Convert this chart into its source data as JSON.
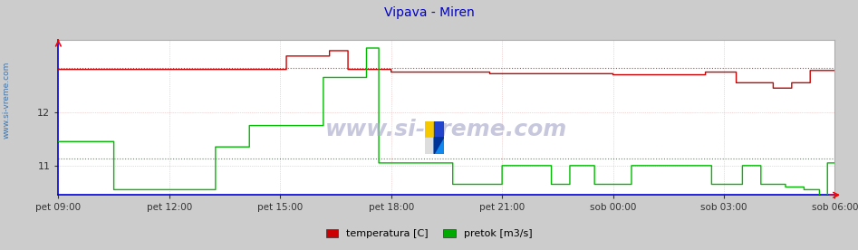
{
  "title": "Vipava - Miren",
  "title_color": "#0000cc",
  "title_fontsize": 10,
  "bg_color": "#cccccc",
  "plot_bg_color": "#ffffff",
  "axis_color": "#0000dd",
  "legend_items": [
    "temperatura [C]",
    "pretok [m3/s]"
  ],
  "legend_colors": [
    "#cc0000",
    "#00aa00"
  ],
  "x_tick_labels": [
    "pet 09:00",
    "pet 12:00",
    "pet 15:00",
    "pet 18:00",
    "pet 21:00",
    "sob 00:00",
    "sob 03:00",
    "sob 06:00"
  ],
  "x_tick_positions": [
    0,
    180,
    360,
    540,
    720,
    900,
    1080,
    1260
  ],
  "total_points": 1261,
  "ylim": [
    10.45,
    13.35
  ],
  "yticks": [
    11,
    12
  ],
  "temp_hline": 12.82,
  "flow_hline": 11.13,
  "temp_color": "#cc0000",
  "flow_color": "#00bb00",
  "temp_hline_color": "#dd3333",
  "flow_hline_color": "#33aa33",
  "sidebar_text": "www.si-vreme.com",
  "sidebar_color": "#4477aa",
  "watermark_text": "www.si-vreme.com",
  "grid_color": "#ddaaaa",
  "grid_color_v": "#ddaaaa"
}
